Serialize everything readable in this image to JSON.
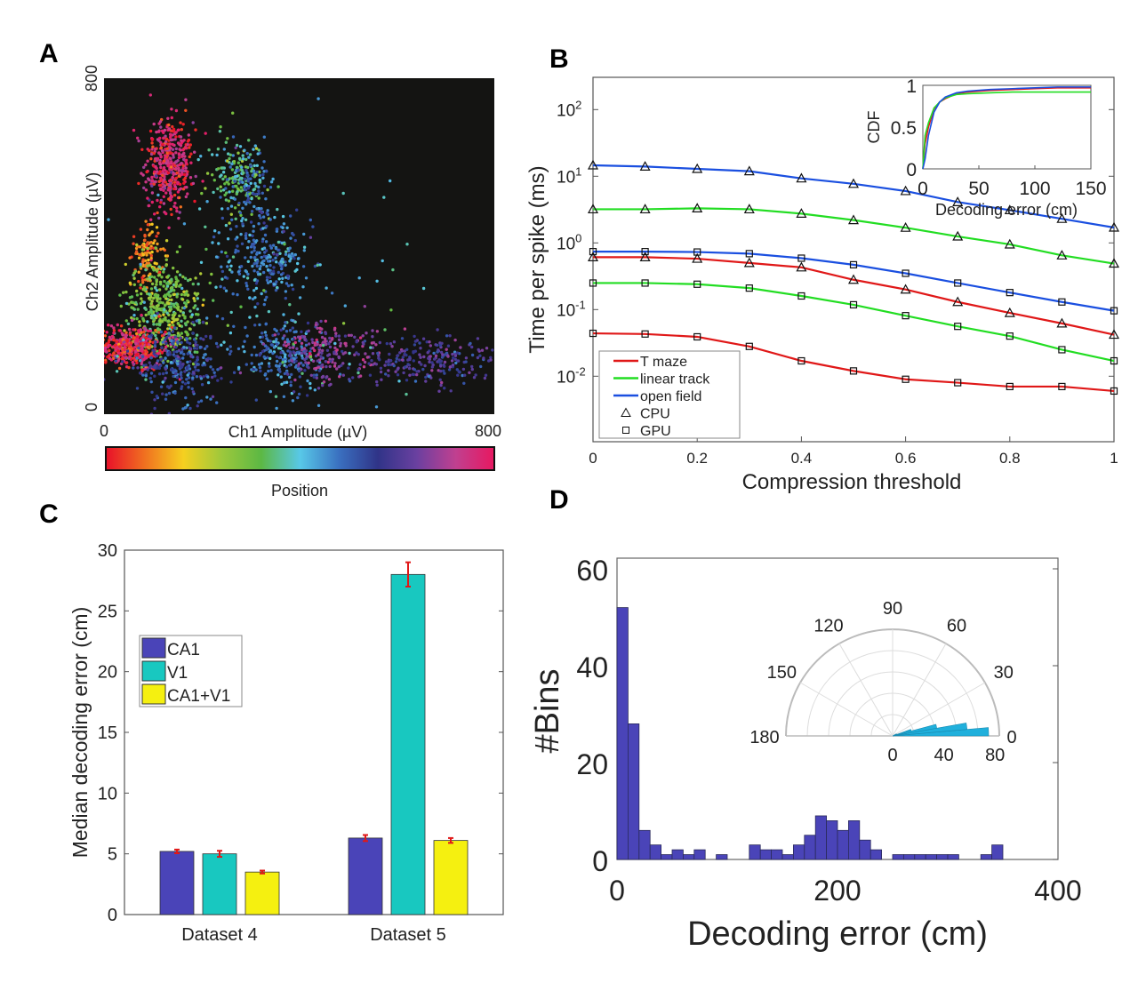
{
  "panels": {
    "a": "A",
    "b": "B",
    "c": "C",
    "d": "D"
  },
  "chart_data": [
    {
      "panel": "A",
      "type": "scatter",
      "xlabel": "Ch1 Amplitude (µV)",
      "ylabel": "Ch2 Amplitude (µV)",
      "xlim": [
        0,
        800
      ],
      "ylim": [
        0,
        800
      ],
      "xticks": [
        "0",
        "800"
      ],
      "yticks": [
        "0",
        "800"
      ],
      "colorbar_label": "Position",
      "colormap": [
        "#e8102a",
        "#f07020",
        "#f5d020",
        "#9cc83c",
        "#5cb844",
        "#58c8e8",
        "#3a70c0",
        "#303488",
        "#6a40a0",
        "#c04090",
        "#e81860"
      ],
      "clusters": [
        {
          "x": 133,
          "y": 595,
          "sx": 25,
          "sy": 55,
          "n": 420,
          "pos": 0.96
        },
        {
          "x": 270,
          "y": 552,
          "sx": 30,
          "sy": 55,
          "n": 160,
          "pos": 0.42
        },
        {
          "x": 300,
          "y": 560,
          "sx": 25,
          "sy": 45,
          "n": 90,
          "pos": 0.6
        },
        {
          "x": 335,
          "y": 370,
          "sx": 45,
          "sy": 60,
          "n": 260,
          "pos": 0.6
        },
        {
          "x": 87,
          "y": 380,
          "sx": 15,
          "sy": 40,
          "n": 120,
          "pos": 0.12
        },
        {
          "x": 125,
          "y": 255,
          "sx": 40,
          "sy": 55,
          "n": 420,
          "pos": 0.36
        },
        {
          "x": 60,
          "y": 160,
          "sx": 40,
          "sy": 25,
          "n": 300,
          "pos": 0.97
        },
        {
          "x": 55,
          "y": 150,
          "sx": 30,
          "sy": 20,
          "n": 120,
          "pos": 0.02
        },
        {
          "x": 150,
          "y": 120,
          "sx": 45,
          "sy": 40,
          "n": 280,
          "pos": 0.66
        },
        {
          "x": 370,
          "y": 140,
          "sx": 45,
          "sy": 40,
          "n": 220,
          "pos": 0.6
        },
        {
          "x": 460,
          "y": 150,
          "sx": 50,
          "sy": 35,
          "n": 200,
          "pos": 0.82
        },
        {
          "x": 660,
          "y": 130,
          "sx": 70,
          "sy": 30,
          "n": 230,
          "pos": 0.74
        },
        {
          "x": 300,
          "y": 250,
          "sx": 200,
          "sy": 200,
          "n": 120,
          "pos": 0.5
        }
      ]
    },
    {
      "panel": "B",
      "type": "line",
      "xlabel": "Compression threshold",
      "ylabel": "Time per spike (ms)",
      "yscale": "log",
      "ylim": [
        0.001,
        300
      ],
      "xlim": [
        0,
        1
      ],
      "xticks": [
        "0",
        "0.2",
        "0.4",
        "0.6",
        "0.8",
        "1"
      ],
      "ytick_base": "10",
      "ytick_exponents": [
        "-2",
        "-1",
        "0",
        "1",
        "2"
      ],
      "x": [
        0,
        0.1,
        0.2,
        0.3,
        0.4,
        0.5,
        0.6,
        0.7,
        0.8,
        0.9,
        1.0
      ],
      "series": [
        {
          "name": "open field",
          "device": "CPU",
          "color": "#1a4fe0",
          "marker": "triangle",
          "values": [
            14.6,
            14.0,
            12.9,
            11.9,
            9.3,
            7.7,
            6.0,
            4.1,
            3.1,
            2.3,
            1.7
          ]
        },
        {
          "name": "linear track",
          "device": "CPU",
          "color": "#22dd22",
          "marker": "triangle",
          "values": [
            3.2,
            3.2,
            3.3,
            3.2,
            2.75,
            2.2,
            1.69,
            1.25,
            0.95,
            0.65,
            0.49
          ]
        },
        {
          "name": "open field",
          "device": "GPU",
          "color": "#1a4fe0",
          "marker": "square",
          "values": [
            0.74,
            0.74,
            0.73,
            0.69,
            0.59,
            0.47,
            0.35,
            0.25,
            0.18,
            0.13,
            0.096
          ]
        },
        {
          "name": "T maze",
          "device": "CPU",
          "color": "#e01818",
          "marker": "triangle",
          "values": [
            0.61,
            0.61,
            0.58,
            0.5,
            0.43,
            0.28,
            0.2,
            0.13,
            0.089,
            0.062,
            0.042
          ]
        },
        {
          "name": "linear track",
          "device": "GPU",
          "color": "#22dd22",
          "marker": "square",
          "values": [
            0.25,
            0.25,
            0.24,
            0.21,
            0.16,
            0.118,
            0.081,
            0.056,
            0.04,
            0.025,
            0.017
          ]
        },
        {
          "name": "T maze",
          "device": "GPU",
          "color": "#e01818",
          "marker": "square",
          "values": [
            0.044,
            0.043,
            0.039,
            0.028,
            0.017,
            0.012,
            0.009,
            0.008,
            0.007,
            0.007,
            0.006
          ]
        }
      ],
      "legend": [
        {
          "label": "T maze",
          "color": "#e01818",
          "kind": "line"
        },
        {
          "label": "linear track",
          "color": "#22dd22",
          "kind": "line"
        },
        {
          "label": "open field",
          "color": "#1a4fe0",
          "kind": "line"
        },
        {
          "label": "CPU",
          "kind": "triangle"
        },
        {
          "label": "GPU",
          "kind": "square"
        }
      ],
      "legend_placement": "bottom-left",
      "inset": {
        "type": "line",
        "xlabel": "Decoding error (cm)",
        "ylabel": "CDF",
        "xlim": [
          0,
          150
        ],
        "ylim": [
          0,
          1
        ],
        "xticks": [
          "0",
          "50",
          "100",
          "150"
        ],
        "yticks": [
          "0",
          "0.5",
          "1"
        ],
        "x": [
          0,
          2,
          5,
          10,
          15,
          20,
          30,
          40,
          60,
          80,
          100,
          120,
          150
        ],
        "series": [
          {
            "name": "T maze",
            "color": "#e01818",
            "values": [
              0,
              0.3,
              0.5,
              0.72,
              0.8,
              0.84,
              0.9,
              0.92,
              0.94,
              0.95,
              0.96,
              0.97,
              0.97
            ]
          },
          {
            "name": "linear track",
            "color": "#22dd22",
            "values": [
              0,
              0.4,
              0.55,
              0.73,
              0.8,
              0.85,
              0.89,
              0.9,
              0.91,
              0.92,
              0.92,
              0.92,
              0.92
            ]
          },
          {
            "name": "open field",
            "color": "#1a4fe0",
            "values": [
              0,
              0.12,
              0.4,
              0.68,
              0.8,
              0.86,
              0.91,
              0.93,
              0.95,
              0.96,
              0.97,
              0.98,
              0.98
            ]
          }
        ]
      }
    },
    {
      "panel": "C",
      "type": "bar",
      "ylabel": "Median decoding error (cm)",
      "ylim": [
        0,
        30
      ],
      "yticks": [
        "0",
        "5",
        "10",
        "15",
        "20",
        "25",
        "30"
      ],
      "categories": [
        "Dataset 4",
        "Dataset 5"
      ],
      "series": [
        {
          "name": "CA1",
          "color": "#4a44b8",
          "values": [
            5.2,
            6.3
          ],
          "errors": [
            0.15,
            0.25
          ]
        },
        {
          "name": "V1",
          "color": "#18c8c0",
          "values": [
            5.0,
            28.0
          ],
          "errors": [
            0.25,
            1.0
          ]
        },
        {
          "name": "CA1+V1",
          "color": "#f5f010",
          "values": [
            3.5,
            6.1
          ],
          "errors": [
            0.12,
            0.2
          ]
        }
      ],
      "error_color": "#e01818",
      "legend_placement": "upper-left"
    },
    {
      "panel": "D",
      "type": "bar",
      "xlabel": "Decoding error (cm)",
      "ylabel": "#Bins",
      "xlim": [
        0,
        400
      ],
      "ylim": [
        0,
        60
      ],
      "xticks": [
        "0",
        "200",
        "400"
      ],
      "yticks": [
        "0",
        "20",
        "40",
        "60"
      ],
      "bin_width": 10,
      "bar_color": "#4a44b8",
      "counts": [
        52,
        28,
        6,
        3,
        1,
        2,
        1,
        2,
        0,
        1,
        0,
        0,
        3,
        2,
        2,
        1,
        3,
        5,
        9,
        8,
        6,
        8,
        4,
        2,
        0,
        1,
        1,
        1,
        1,
        1,
        1,
        0,
        0,
        1,
        3
      ],
      "inset": {
        "type": "polar-histogram",
        "angle_labels": [
          "0",
          "30",
          "60",
          "90",
          "120",
          "150",
          "180"
        ],
        "radial_ticks": [
          "0",
          "40",
          "80"
        ],
        "rmax": 100,
        "color": "#20b0dc",
        "bins": [
          {
            "from": 0,
            "to": 5,
            "r": 90
          },
          {
            "from": 5,
            "to": 10,
            "r": 70
          },
          {
            "from": 10,
            "to": 15,
            "r": 42
          },
          {
            "from": 15,
            "to": 20,
            "r": 18
          },
          {
            "from": 20,
            "to": 30,
            "r": 4
          }
        ]
      }
    }
  ]
}
